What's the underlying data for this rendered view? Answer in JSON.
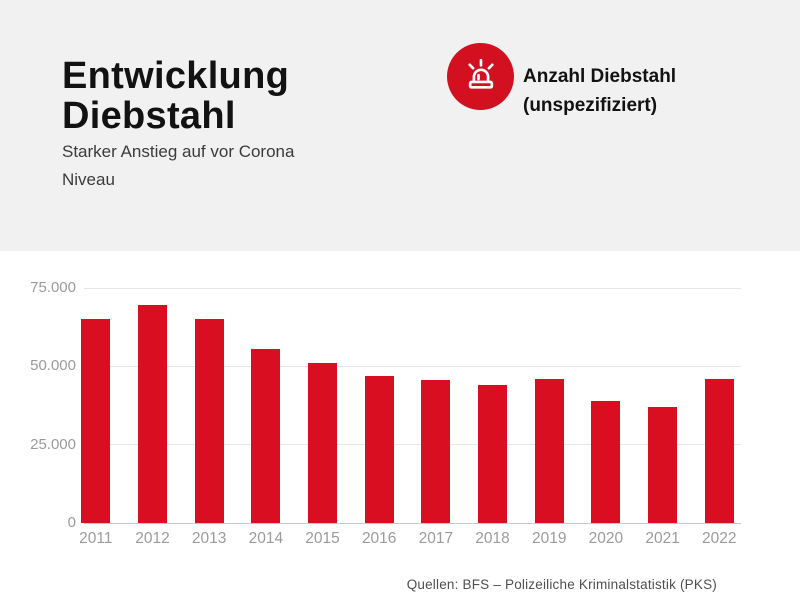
{
  "header": {
    "title": "Entwicklung Diebstahl",
    "subtitle": "Starker Anstieg auf vor Corona Niveau",
    "legend": {
      "icon": "siren-icon",
      "label": "Anzahl Diebstahl (unspezifiziert)"
    }
  },
  "source": {
    "text": "Quellen: BFS – Polizeiliche Kriminalstatistik (PKS)"
  },
  "colors": {
    "bar": "#d90e21",
    "legend_circle": "#d2101f",
    "header_bg": "#f1f1f1",
    "title_text": "#121212",
    "subtitle_text": "#3b3b3b",
    "axis_label": "#9b9b9b",
    "gridline": "#e6e6e6",
    "axis_line": "#c9c9c9",
    "source_text": "#4f4f4f"
  },
  "chart_data": {
    "type": "bar",
    "title": "Entwicklung Diebstahl",
    "subtitle": "Starker Anstieg auf vor Corona Niveau",
    "legend_entries": [
      "Anzahl Diebstahl (unspezifiziert)"
    ],
    "legend_position": "top-right",
    "categories": [
      "2011",
      "2012",
      "2013",
      "2014",
      "2015",
      "2016",
      "2017",
      "2018",
      "2019",
      "2020",
      "2021",
      "2022"
    ],
    "values": [
      65000,
      69500,
      65000,
      55500,
      51000,
      47000,
      45500,
      44000,
      46000,
      39000,
      37000,
      46000
    ],
    "xlabel": "",
    "ylabel": "",
    "ylim": [
      0,
      75000
    ],
    "yticks": [
      0,
      25000,
      50000,
      75000
    ],
    "ytick_labels": [
      "0",
      "25.000",
      "50.000",
      "75.000"
    ],
    "grid": true,
    "source": "Quellen: BFS – Polizeiliche Kriminalstatistik (PKS)"
  }
}
